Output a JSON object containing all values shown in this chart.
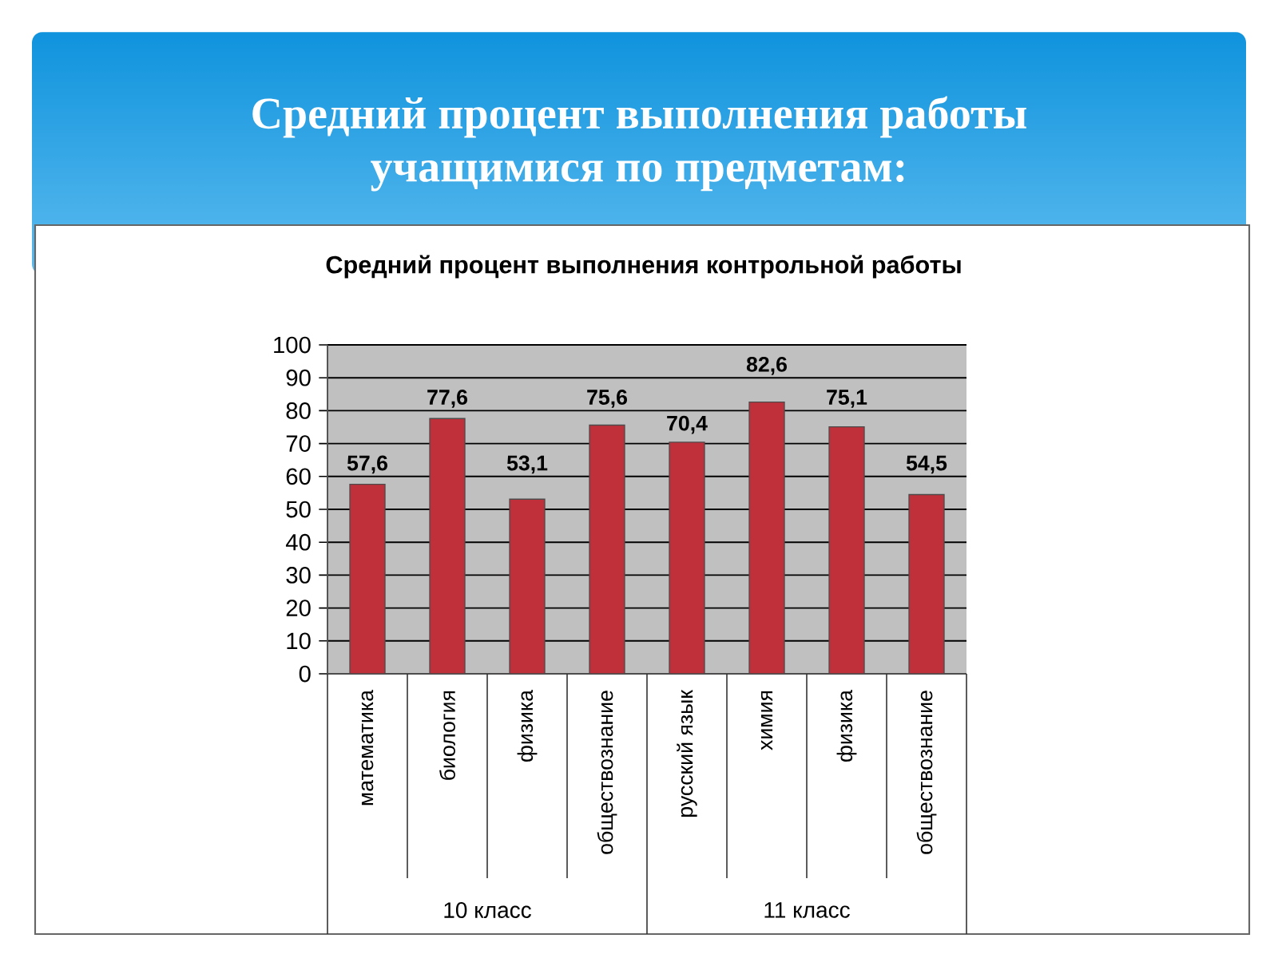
{
  "chart_data": {
    "type": "bar",
    "title": "Средний процент выполнения работы учащимися по предметам:",
    "subtitle": "Средний процент выполнения контрольной работы",
    "categories": [
      "математика",
      "биология",
      "физика",
      "обществознание",
      "русский язык",
      "химия",
      "физика",
      "обществознание"
    ],
    "values": [
      57.6,
      77.6,
      53.1,
      75.6,
      70.4,
      82.6,
      75.1,
      54.5
    ],
    "value_labels": [
      "57,6",
      "77,6",
      "53,1",
      "75,6",
      "70,4",
      "82,6",
      "75,1",
      "54,5"
    ],
    "color": "#c0303a",
    "ylim": [
      0,
      100
    ],
    "yticks": [
      0,
      10,
      20,
      30,
      40,
      50,
      60,
      70,
      80,
      90,
      100
    ],
    "grid": "y",
    "annotations": [
      "10 класс",
      "11 класс"
    ]
  }
}
